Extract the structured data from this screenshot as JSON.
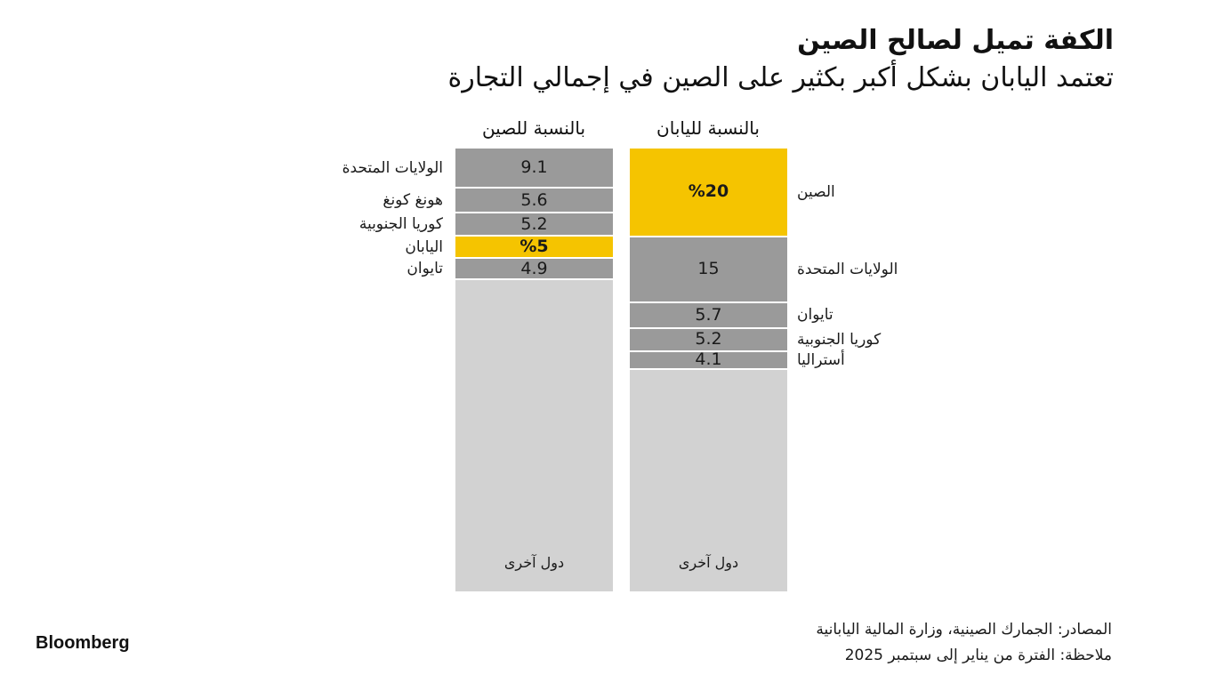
{
  "header": {
    "title": "الكفة تميل لصالح الصين",
    "subtitle": "تعتمد اليابان بشكل أكبر بكثير على الصين في إجمالي التجارة"
  },
  "chart_data": [
    {
      "type": "bar",
      "stacked": true,
      "title": "بالنسبة لليابان",
      "unit": "%",
      "categories": [
        "الصين",
        "الولايات المتحدة",
        "تايوان",
        "كوريا الجنوبية",
        "أستراليا",
        "دول آخرى"
      ],
      "values": [
        20,
        15,
        5.7,
        5.2,
        4.1,
        50
      ],
      "value_labels": [
        "%20",
        "15",
        "5.7",
        "5.2",
        "4.1",
        ""
      ],
      "highlight": "الصين"
    },
    {
      "type": "bar",
      "stacked": true,
      "title": "بالنسبة للصين",
      "unit": "%",
      "categories": [
        "الولايات المتحدة",
        "هونغ كونغ",
        "كوريا الجنوبية",
        "اليابان",
        "تايوان",
        "دول آخرى"
      ],
      "values": [
        9.1,
        5.6,
        5.2,
        5,
        4.9,
        70.2
      ],
      "value_labels": [
        "9.1",
        "5.6",
        "5.2",
        "%5",
        "4.9",
        ""
      ],
      "highlight": "اليابان"
    }
  ],
  "colors": {
    "highlight": "#f5c400",
    "segment": "#9a9a9a",
    "other": "#d2d2d2",
    "divider": "#ffffff",
    "text": "#1a1a1a"
  },
  "footer": {
    "brand": "Bloomberg",
    "sources": "المصادر: الجمارك الصينية، وزارة المالية اليابانية",
    "note": "ملاحظة: الفترة من يناير إلى سبتمبر 2025"
  }
}
